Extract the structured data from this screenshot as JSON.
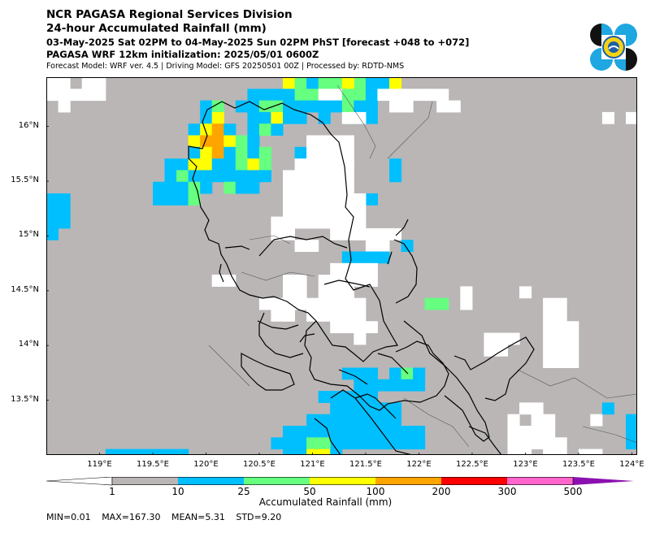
{
  "header": {
    "line1": "NCR PAGASA Regional Services Division",
    "line2": "24-hour Accumulated Rainfall (mm)",
    "line3": "03-May-2025 Sat 02PM to 04-May-2025 Sun 02PM PhST [forecast +048 to +072]",
    "line4": "PAGASA WRF 12km initialization: 2025/05/01 0600Z",
    "line5": "Forecast Model: WRF ver. 4.5 | Driving Model: GFS 20250501 00Z | Processed by: RDTD-NMS"
  },
  "map": {
    "lon_range": [
      118.5,
      124.05
    ],
    "lat_range": [
      13.0,
      16.45
    ],
    "lon_ticks": [
      "119°E",
      "119.5°E",
      "120°E",
      "120.5°E",
      "121°E",
      "121.5°E",
      "122°E",
      "122.5°E",
      "123°E",
      "123.5°E",
      "124°E"
    ],
    "lon_tick_values": [
      119,
      119.5,
      120,
      120.5,
      121,
      121.5,
      122,
      122.5,
      123,
      123.5,
      124
    ],
    "lat_ticks": [
      "16°N",
      "15.5°N",
      "15°N",
      "14.5°N",
      "14°N",
      "13.5°N"
    ],
    "lat_tick_values": [
      16,
      15.5,
      15,
      14.5,
      14,
      13.5
    ],
    "colors": {
      "background_low": "#bab6b6",
      "dry": "#ffffff",
      "coast": "#000000",
      "province": "#555555"
    }
  },
  "colorbar": {
    "labels": [
      "1",
      "10",
      "25",
      "50",
      "100",
      "200",
      "300",
      "500"
    ],
    "colors": [
      "#ffffff",
      "#bab6b6",
      "#00bfff",
      "#66ff80",
      "#ffff00",
      "#ffa500",
      "#ff0000",
      "#ff66cc",
      "#8b10b0"
    ],
    "label": "Accumulated Rainfall (mm)"
  },
  "stats": {
    "min": "MIN=0.01",
    "max": "MAX=167.30",
    "mean": "MEAN=5.31",
    "std": "STD=9.20"
  },
  "logo": {
    "colors": [
      "#111111",
      "#1ea7e1",
      "#f5d312"
    ]
  }
}
